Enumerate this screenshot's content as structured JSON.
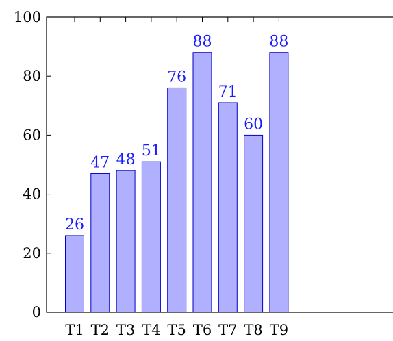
{
  "chart_data": {
    "type": "bar",
    "categories": [
      "T1",
      "T2",
      "T3",
      "T4",
      "T5",
      "T6",
      "T7",
      "T8",
      "T9"
    ],
    "values": [
      26,
      47,
      48,
      51,
      76,
      88,
      71,
      60,
      88
    ],
    "title": "",
    "xlabel": "",
    "ylabel": "",
    "ylim": [
      0,
      100
    ],
    "yticks": [
      0,
      20,
      40,
      60,
      80,
      100
    ],
    "grid": false,
    "data_labels": true,
    "colors": {
      "bar_fill": "#b0b0ff",
      "bar_stroke": "#0000cc",
      "label": "#1a1aff",
      "axis": "#000000"
    }
  }
}
